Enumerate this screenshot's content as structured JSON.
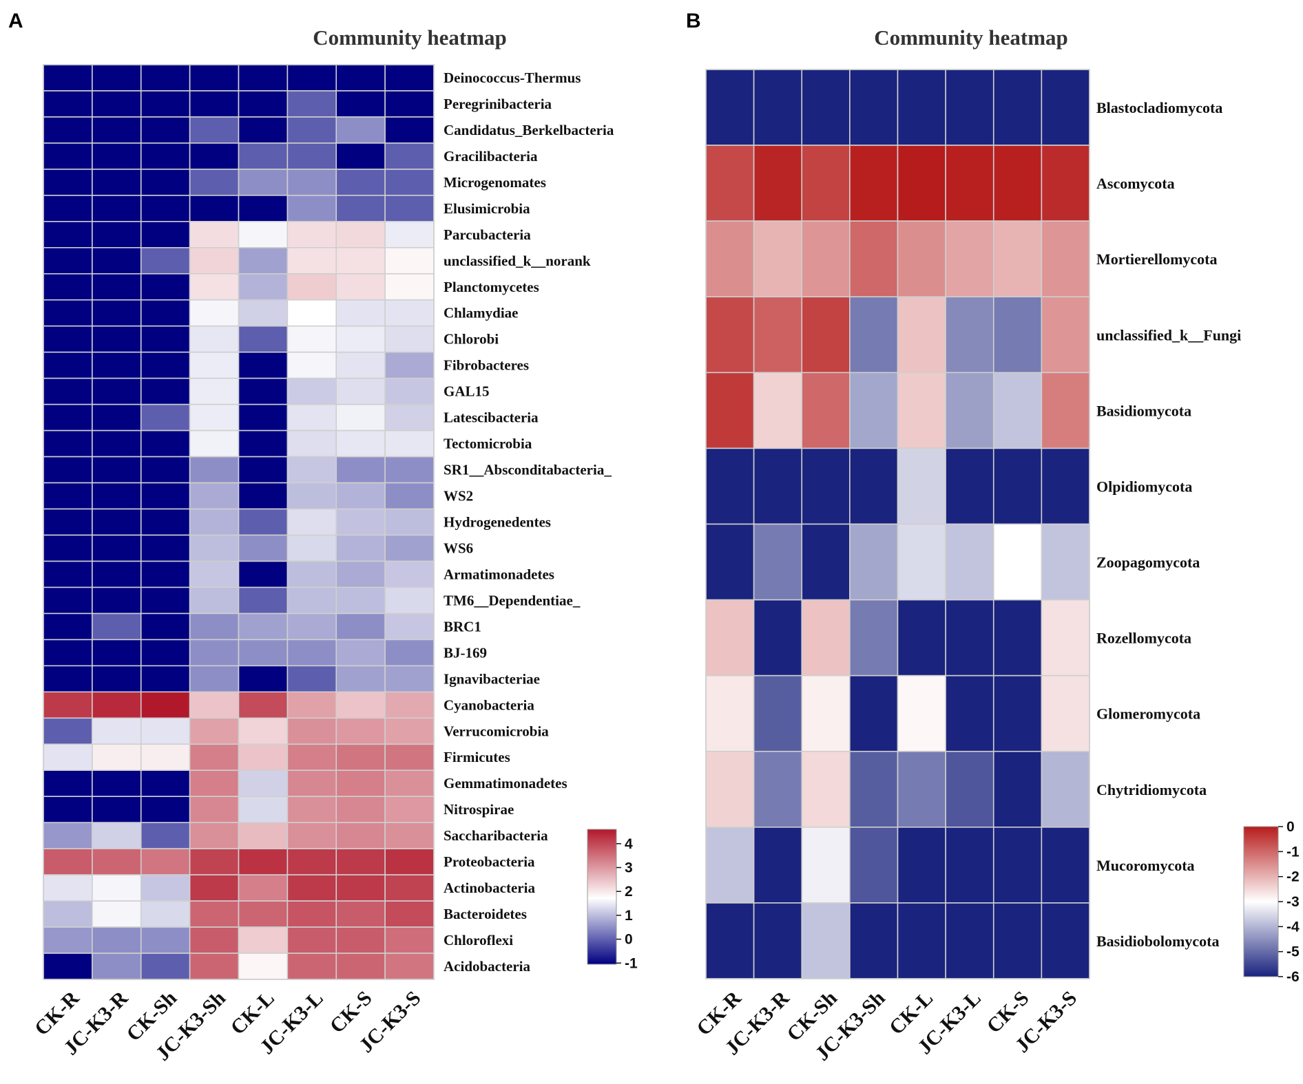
{
  "chart_data": [
    {
      "type": "heatmap",
      "panel": "A",
      "title": "Community heatmap",
      "columns": [
        "CK-R",
        "JC-K3-R",
        "CK-Sh",
        "JC-K3-Sh",
        "CK-L",
        "JC-K3-L",
        "CK-S",
        "JC-K3-S"
      ],
      "rows": [
        "Deinococcus-Thermus",
        "Peregrinibacteria",
        "Candidatus_Berkelbacteria",
        "Gracilibacteria",
        "Microgenomates",
        "Elusimicrobia",
        "Parcubacteria",
        "unclassified_k__norank",
        "Planctomycetes",
        "Chlamydiae",
        "Chlorobi",
        "Fibrobacteres",
        "GAL15",
        "Latescibacteria",
        "Tectomicrobia",
        "SR1__Absconditabacteria_",
        "WS2",
        "Hydrogenedentes",
        "WS6",
        "Armatimonadetes",
        "TM6__Dependentiae_",
        "BRC1",
        "BJ-169",
        "Ignavibacteriae",
        "Cyanobacteria",
        "Verrucomicrobia",
        "Firmicutes",
        "Gemmatimonadetes",
        "Nitrospirae",
        "Saccharibacteria",
        "Proteobacteria",
        "Actinobacteria",
        "Bacteroidetes",
        "Chloroflexi",
        "Acidobacteria"
      ],
      "values": [
        [
          -1,
          -1,
          -1,
          -1,
          -1,
          -1,
          -1,
          -1
        ],
        [
          -1,
          -1,
          -1,
          -1,
          -1,
          0,
          -1,
          -1
        ],
        [
          -1,
          -1,
          -1,
          0,
          -1,
          0,
          0.5,
          -1
        ],
        [
          -1,
          -1,
          -1,
          -1,
          0,
          0,
          -1,
          0
        ],
        [
          -1,
          -1,
          -1,
          0,
          0.5,
          0.5,
          0,
          0
        ],
        [
          -1,
          -1,
          -1,
          -1,
          -1,
          0.5,
          0,
          0
        ],
        [
          -1,
          -1,
          -1,
          2.1,
          1.6,
          2.1,
          2.15,
          1.5
        ],
        [
          -1,
          -1,
          0,
          2.2,
          0.7,
          2.05,
          2.05,
          1.8
        ],
        [
          -1,
          -1,
          -1,
          2.05,
          0.9,
          2.3,
          2.1,
          1.8
        ],
        [
          -1,
          -1,
          -1,
          1.6,
          1.2,
          1.7,
          1.4,
          1.4
        ],
        [
          -1,
          -1,
          -1,
          1.45,
          0,
          1.6,
          1.5,
          1.35
        ],
        [
          -1,
          -1,
          -1,
          1.5,
          -1,
          1.6,
          1.4,
          0.8
        ],
        [
          -1,
          -1,
          -1,
          1.5,
          -1,
          1.15,
          1.35,
          1.1
        ],
        [
          -1,
          -1,
          0,
          1.5,
          -1,
          1.4,
          1.55,
          1.2
        ],
        [
          -1,
          -1,
          -1,
          1.55,
          -1,
          1.35,
          1.45,
          1.45
        ],
        [
          -1,
          -1,
          -1,
          0.5,
          -1,
          1.1,
          0.5,
          0.5
        ],
        [
          -1,
          -1,
          -1,
          0.8,
          -1,
          1.0,
          0.9,
          0.5
        ],
        [
          -1,
          -1,
          -1,
          0.9,
          0,
          1.35,
          1.05,
          1.0
        ],
        [
          -1,
          -1,
          -1,
          1.0,
          0.5,
          1.3,
          0.9,
          0.7
        ],
        [
          -1,
          -1,
          -1,
          1.1,
          -1,
          1.0,
          0.8,
          1.1
        ],
        [
          -1,
          -1,
          -1,
          1.0,
          0,
          1.0,
          1.0,
          1.3
        ],
        [
          -1,
          0,
          -1,
          0.5,
          0.7,
          0.8,
          0.5,
          1.1
        ],
        [
          -1,
          -1,
          -1,
          0.5,
          0.5,
          0.5,
          0.8,
          0.5
        ],
        [
          -1,
          -1,
          -1,
          0.5,
          -1,
          0,
          0.7,
          0.7
        ],
        [
          4,
          4.2,
          4.4,
          2.4,
          3.8,
          2.8,
          2.4,
          2.7
        ],
        [
          0,
          1.4,
          1.4,
          2.8,
          2.2,
          3.0,
          2.9,
          2.8
        ],
        [
          1.4,
          1.9,
          1.9,
          3.2,
          2.4,
          3.2,
          3.3,
          3.3
        ],
        [
          -1,
          -1,
          -1,
          3.2,
          1.2,
          3.1,
          3.2,
          3.0
        ],
        [
          -1,
          -1,
          -1,
          3.1,
          1.3,
          3.0,
          3.1,
          2.9
        ],
        [
          0.6,
          1.2,
          0,
          3.0,
          2.5,
          3.0,
          3.1,
          3.0
        ],
        [
          3.6,
          3.5,
          3.3,
          3.9,
          4.1,
          4.0,
          4.0,
          4.1
        ],
        [
          1.4,
          1.6,
          1.1,
          4.0,
          3.2,
          4.0,
          4.0,
          3.9
        ],
        [
          1.0,
          1.6,
          1.3,
          3.5,
          3.5,
          3.7,
          3.6,
          3.8
        ],
        [
          0.6,
          0.5,
          0.5,
          3.6,
          2.3,
          3.6,
          3.6,
          3.4
        ],
        [
          -1,
          0.5,
          0,
          3.5,
          1.8,
          3.5,
          3.5,
          3.3
        ]
      ],
      "scale": {
        "min": -1,
        "max": 4.4,
        "mid": 1.7,
        "ticks": [
          4,
          3,
          2,
          1,
          0,
          -1
        ],
        "colors": [
          "#000080",
          "#ffffff",
          "#b2182b"
        ]
      }
    },
    {
      "type": "heatmap",
      "panel": "B",
      "title": "Community heatmap",
      "columns": [
        "CK-R",
        "JC-K3-R",
        "CK-Sh",
        "JC-K3-Sh",
        "CK-L",
        "JC-K3-L",
        "CK-S",
        "JC-K3-S"
      ],
      "rows": [
        "Blastocladiomycota",
        "Ascomycota",
        "Mortierellomycota",
        "unclassified_k__Fungi",
        "Basidiomycota",
        "Olpidiomycota",
        "Zoopagomycota",
        "Rozellomycota",
        "Glomeromycota",
        "Chytridiomycota",
        "Mucoromycota",
        "Basidiobolomycota"
      ],
      "values": [
        [
          -6,
          -6,
          -6,
          -6,
          -6,
          -6,
          -6,
          -6
        ],
        [
          -0.6,
          -0.1,
          -0.5,
          -0.05,
          0,
          -0.05,
          -0.05,
          -0.2
        ],
        [
          -1.5,
          -2.0,
          -1.6,
          -1.0,
          -1.5,
          -1.8,
          -2.0,
          -1.6
        ],
        [
          -0.6,
          -0.9,
          -0.5,
          -4.8,
          -2.2,
          -4.6,
          -4.8,
          -1.6
        ],
        [
          -0.4,
          -2.4,
          -1.0,
          -4.2,
          -2.3,
          -4.3,
          -3.8,
          -1.3
        ],
        [
          -6,
          -6,
          -6,
          -6,
          -3.6,
          -6,
          -6,
          -6
        ],
        [
          -6,
          -4.8,
          -6,
          -4.2,
          -3.5,
          -3.8,
          -3.0,
          -3.8
        ],
        [
          -2.2,
          -6,
          -2.2,
          -4.8,
          -6,
          -6,
          -6,
          -2.6
        ],
        [
          -2.7,
          -5.2,
          -2.8,
          -6,
          -2.9,
          -6,
          -6,
          -2.6
        ],
        [
          -2.4,
          -4.8,
          -2.5,
          -5.2,
          -4.8,
          -5.3,
          -6,
          -4.0
        ],
        [
          -3.8,
          -6,
          -3.2,
          -5.3,
          -6,
          -6,
          -6,
          -6
        ],
        [
          -6,
          -6,
          -3.8,
          -6,
          -6,
          -6,
          -6,
          -6
        ]
      ],
      "scale": {
        "min": -6,
        "max": 0,
        "mid": -3,
        "ticks": [
          0,
          -1,
          -2,
          -3,
          -4,
          -5,
          -6
        ],
        "colors": [
          "#1a237e",
          "#ffffff",
          "#b71c1c"
        ]
      }
    }
  ]
}
